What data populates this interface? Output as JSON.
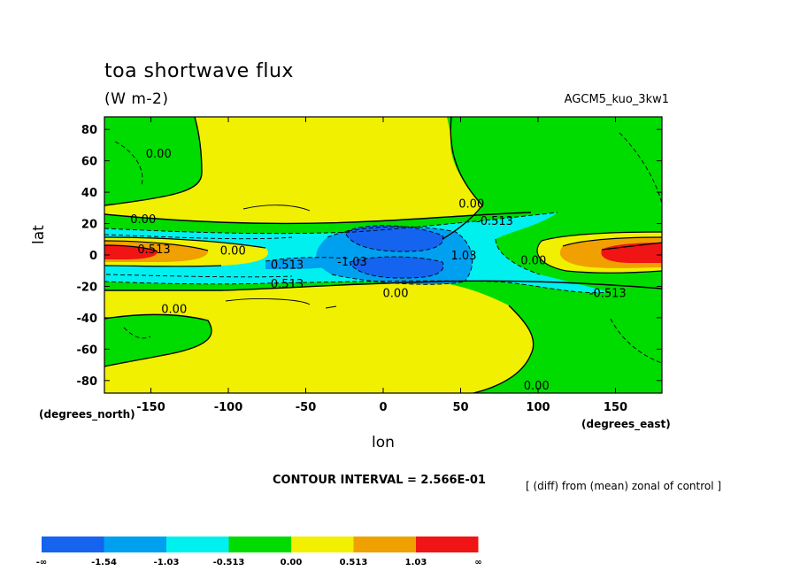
{
  "chart_data": {
    "type": "contour",
    "title": "toa shortwave flux",
    "units": "(W m-2)",
    "run_name": "AGCM5_kuo_3kw1",
    "xlabel": "lon",
    "ylabel": "lat",
    "x_unit_note": "(degrees_east)",
    "y_unit_note": "(degrees_north)",
    "xlim": [
      -180,
      180
    ],
    "ylim": [
      -88,
      88
    ],
    "x_ticks": [
      -150,
      -100,
      -50,
      0,
      50,
      100,
      150
    ],
    "y_ticks": [
      80,
      60,
      40,
      20,
      0,
      -20,
      -40,
      -60,
      -80
    ],
    "contour_interval_text": "CONTOUR INTERVAL = 2.566E-01",
    "subtitle_note": "[ (diff) from (mean) zonal of control ]",
    "colorbar": {
      "labels": [
        "-∞",
        "-1.54",
        "-1.03",
        "-0.513",
        "0.00",
        "0.513",
        "1.03",
        "∞"
      ],
      "colors": [
        "#1464f0",
        "#00a0f0",
        "#00f0f0",
        "#00dc00",
        "#f0f000",
        "#f0a000",
        "#f01414"
      ]
    },
    "contour_labels": [
      {
        "text": "0.00",
        "lon": -145,
        "lat": 65
      },
      {
        "text": "0.00",
        "lon": -155,
        "lat": 23
      },
      {
        "text": "0.513",
        "lon": -148,
        "lat": 4
      },
      {
        "text": "0.00",
        "lon": -97,
        "lat": 3
      },
      {
        "text": "0.513",
        "lon": -62,
        "lat": -6
      },
      {
        "text": "-1.03",
        "lon": -20,
        "lat": -4
      },
      {
        "text": "0.513",
        "lon": -62,
        "lat": -18
      },
      {
        "text": "0.00",
        "lon": 8,
        "lat": -24
      },
      {
        "text": "0.00",
        "lon": -135,
        "lat": -34
      },
      {
        "text": "0.00",
        "lon": 57,
        "lat": 33
      },
      {
        "text": "-0.513",
        "lon": 72,
        "lat": 22
      },
      {
        "text": "1.03",
        "lon": 52,
        "lat": 0
      },
      {
        "text": "0.00",
        "lon": 97,
        "lat": -3
      },
      {
        "text": "-0.513",
        "lon": 145,
        "lat": -24
      },
      {
        "text": "0.00",
        "lon": 99,
        "lat": -83
      }
    ]
  }
}
